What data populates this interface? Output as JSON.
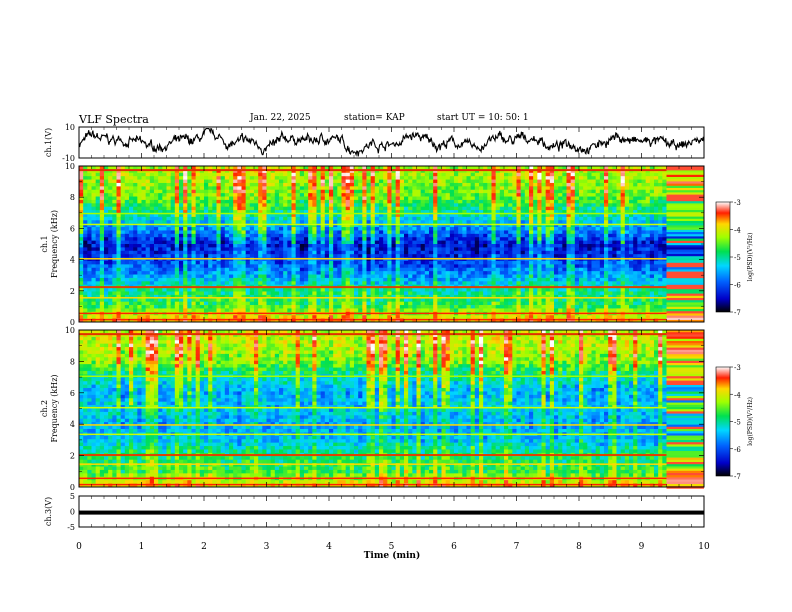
{
  "header": {
    "title": "VLF Spectra",
    "date": "Jan. 22, 2025",
    "station": "station= KAP",
    "start": "start  UT =  10: 50: 1"
  },
  "chart_data": [
    {
      "type": "line",
      "name": "ch1-waveform",
      "ylabel": "ch.1(V)",
      "ylim": [
        -10,
        10
      ],
      "yticks": [
        "10",
        "-10"
      ],
      "xlim": [
        0,
        10
      ],
      "series": [
        {
          "name": "ch.1",
          "note": "noisy amplitude trace between about -6 and 6 V"
        }
      ]
    },
    {
      "type": "heatmap",
      "name": "ch1-spectrogram",
      "ylabel": "ch.1\nFrequency (kHz)",
      "ylabel_lines": [
        "ch.1",
        "Frequency (kHz)"
      ],
      "ylim": [
        0,
        10
      ],
      "yticks": [
        "0",
        "2",
        "4",
        "6",
        "8",
        "10"
      ],
      "xlim": [
        0,
        10
      ],
      "colorbar": {
        "label": "log(PSD)(V²/Hz)",
        "range": [
          -7,
          -3
        ],
        "ticks": [
          "-3",
          "-4",
          "-5",
          "-6",
          "-7"
        ]
      },
      "profile_khz": [
        0,
        1,
        2,
        3,
        4,
        5,
        6,
        7,
        8,
        9,
        10
      ],
      "profile_level": [
        -3.9,
        -4.9,
        -5.2,
        -5.8,
        -6.2,
        -6.4,
        -5.8,
        -5.2,
        -4.7,
        -4.5,
        -4.4
      ]
    },
    {
      "type": "heatmap",
      "name": "ch2-spectrogram",
      "ylabel": "ch.2\nFrequency (kHz)",
      "ylabel_lines": [
        "ch.2",
        "Frequency (kHz)"
      ],
      "ylim": [
        0,
        10
      ],
      "yticks": [
        "0",
        "2",
        "4",
        "6",
        "8",
        "10"
      ],
      "xlim": [
        0,
        10
      ],
      "colorbar": {
        "label": "log(PSD)(V²/Hz)",
        "range": [
          -7,
          -3
        ],
        "ticks": [
          "-3",
          "-4",
          "-5",
          "-6",
          "-7"
        ]
      },
      "profile_khz": [
        0,
        1,
        2,
        3,
        4,
        5,
        6,
        7,
        8,
        9,
        10
      ],
      "profile_level": [
        -4.0,
        -4.9,
        -5.1,
        -5.6,
        -5.7,
        -5.5,
        -5.7,
        -5.3,
        -4.6,
        -4.4,
        -4.3
      ]
    },
    {
      "type": "line",
      "name": "ch3-waveform",
      "ylabel": "ch.3(V)",
      "ylim": [
        -5,
        5
      ],
      "yticks": [
        "5",
        "0",
        "-5"
      ],
      "xlim": [
        0,
        10
      ],
      "series": [
        {
          "name": "ch.3",
          "note": "flat thick trace near -0.3 V"
        }
      ],
      "xlabel": "Time  (min)",
      "xticks": [
        "0",
        "1",
        "2",
        "3",
        "4",
        "5",
        "6",
        "7",
        "8",
        "9",
        "10"
      ]
    }
  ]
}
